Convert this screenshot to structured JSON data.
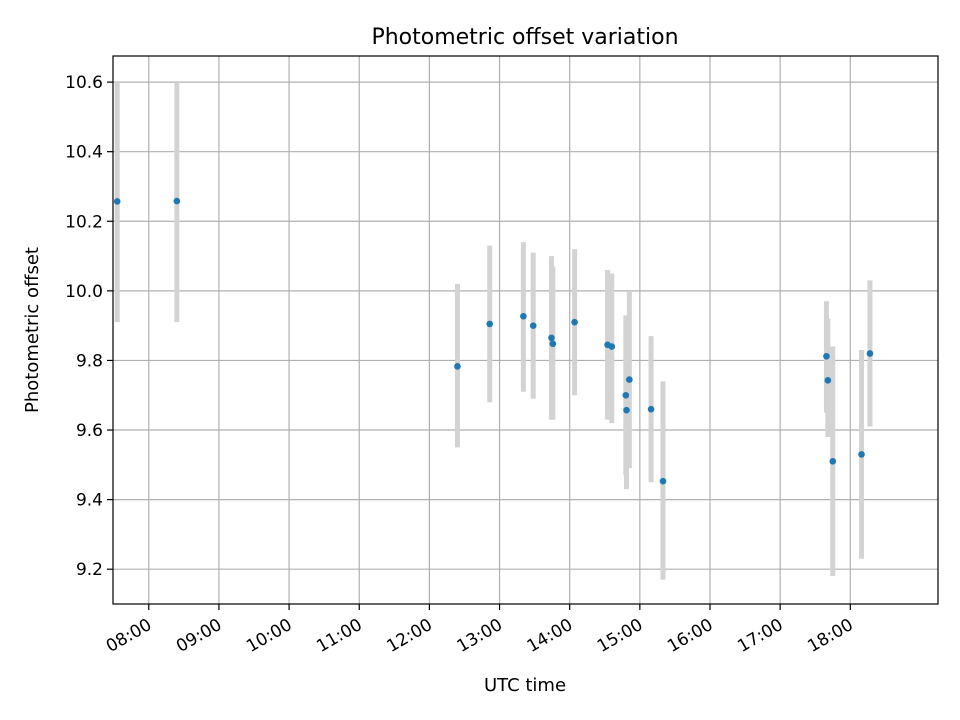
{
  "chart_data": {
    "type": "scatter",
    "title": "Photometric offset variation",
    "xlabel": "UTC time",
    "ylabel": "Photometric offset",
    "x_axis": "time of day (UTC), decimal hours",
    "xlim": [
      7.49,
      19.25
    ],
    "ylim": [
      9.1,
      10.675
    ],
    "xticks": [
      8,
      9,
      10,
      11,
      12,
      13,
      14,
      15,
      16,
      17,
      18
    ],
    "xtick_labels": [
      "08:00",
      "09:00",
      "10:00",
      "11:00",
      "12:00",
      "13:00",
      "14:00",
      "15:00",
      "16:00",
      "17:00",
      "18:00"
    ],
    "yticks": [
      9.2,
      9.4,
      9.6,
      9.8,
      10.0,
      10.2,
      10.4,
      10.6
    ],
    "ytick_labels": [
      "9.2",
      "9.4",
      "9.6",
      "9.8",
      "10.0",
      "10.2",
      "10.4",
      "10.6"
    ],
    "grid": true,
    "marker_color": "#1f77b4",
    "errorbar_color": "#d3d3d3",
    "points": [
      {
        "x": 7.55,
        "y": 10.257,
        "yerr_low": 9.91,
        "yerr_high": 10.6
      },
      {
        "x": 8.4,
        "y": 10.258,
        "yerr_low": 9.91,
        "yerr_high": 10.6
      },
      {
        "x": 12.4,
        "y": 9.783,
        "yerr_low": 9.55,
        "yerr_high": 10.02
      },
      {
        "x": 12.86,
        "y": 9.905,
        "yerr_low": 9.68,
        "yerr_high": 10.13
      },
      {
        "x": 13.34,
        "y": 9.927,
        "yerr_low": 9.71,
        "yerr_high": 10.14
      },
      {
        "x": 13.48,
        "y": 9.9,
        "yerr_low": 9.69,
        "yerr_high": 10.11
      },
      {
        "x": 13.74,
        "y": 9.865,
        "yerr_low": 9.63,
        "yerr_high": 10.1
      },
      {
        "x": 13.76,
        "y": 9.848,
        "yerr_low": 9.63,
        "yerr_high": 10.07
      },
      {
        "x": 14.07,
        "y": 9.91,
        "yerr_low": 9.7,
        "yerr_high": 10.12
      },
      {
        "x": 14.54,
        "y": 9.845,
        "yerr_low": 9.63,
        "yerr_high": 10.06
      },
      {
        "x": 14.6,
        "y": 9.84,
        "yerr_low": 9.62,
        "yerr_high": 10.05
      },
      {
        "x": 14.8,
        "y": 9.7,
        "yerr_low": 9.47,
        "yerr_high": 9.93
      },
      {
        "x": 14.81,
        "y": 9.657,
        "yerr_low": 9.43,
        "yerr_high": 9.88
      },
      {
        "x": 14.85,
        "y": 9.745,
        "yerr_low": 9.49,
        "yerr_high": 10.0
      },
      {
        "x": 15.16,
        "y": 9.66,
        "yerr_low": 9.45,
        "yerr_high": 9.87
      },
      {
        "x": 15.33,
        "y": 9.453,
        "yerr_low": 9.17,
        "yerr_high": 9.74
      },
      {
        "x": 17.66,
        "y": 9.812,
        "yerr_low": 9.65,
        "yerr_high": 9.97
      },
      {
        "x": 17.68,
        "y": 9.743,
        "yerr_low": 9.58,
        "yerr_high": 9.92
      },
      {
        "x": 17.75,
        "y": 9.51,
        "yerr_low": 9.18,
        "yerr_high": 9.84
      },
      {
        "x": 18.16,
        "y": 9.53,
        "yerr_low": 9.23,
        "yerr_high": 9.83
      },
      {
        "x": 18.28,
        "y": 9.82,
        "yerr_low": 9.61,
        "yerr_high": 10.03
      }
    ]
  }
}
